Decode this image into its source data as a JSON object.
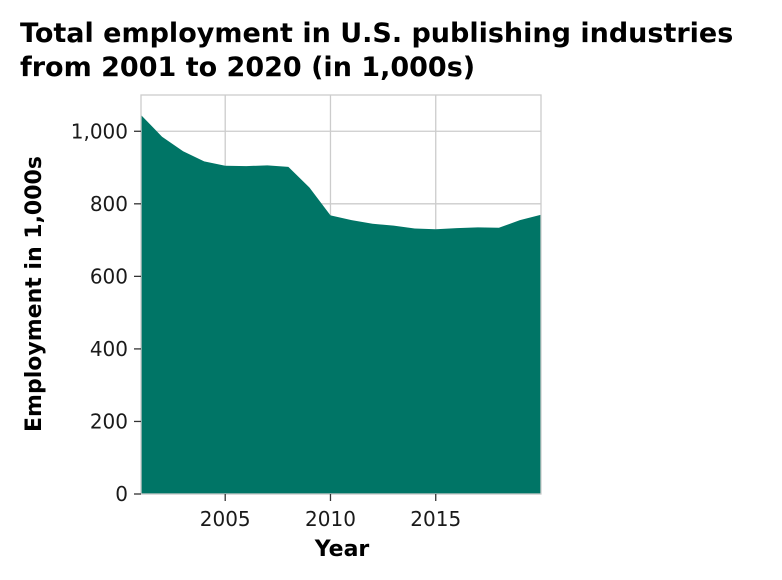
{
  "chart_data": {
    "type": "area",
    "title_lines": [
      "Total employment in U.S. publishing industries",
      "from 2001 to 2020 (in 1,000s)"
    ],
    "xlabel": "Year",
    "ylabel": "Employment in 1,000s",
    "xlim": [
      2001,
      2020
    ],
    "ylim": [
      0,
      1100
    ],
    "x_ticks": [
      2005,
      2010,
      2015
    ],
    "y_ticks": [
      0,
      200,
      400,
      600,
      800,
      1000
    ],
    "y_tick_labels": [
      "0",
      "200",
      "400",
      "600",
      "800",
      "1,000"
    ],
    "grid": true,
    "fill_color": "#007566",
    "x": [
      2001,
      2002,
      2003,
      2004,
      2005,
      2006,
      2007,
      2008,
      2009,
      2010,
      2011,
      2012,
      2013,
      2014,
      2015,
      2016,
      2017,
      2018,
      2019,
      2020
    ],
    "values": [
      1045,
      985,
      945,
      917,
      905,
      904,
      906,
      902,
      845,
      768,
      755,
      745,
      740,
      732,
      730,
      733,
      735,
      734,
      755,
      770
    ]
  }
}
